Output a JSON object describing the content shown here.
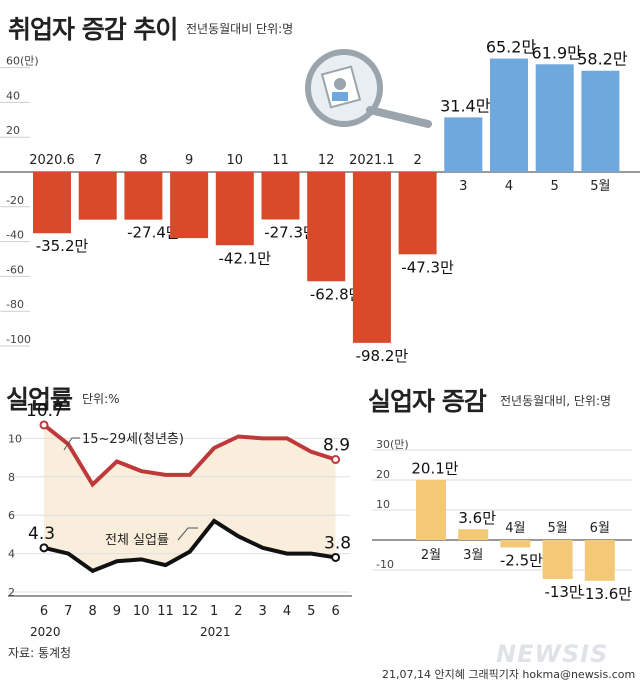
{
  "colors": {
    "neg": "#d94a2b",
    "pos": "#6fa8dc",
    "bar2": "#f3c978",
    "area": "#f9eedc",
    "red": "#c0393a",
    "line": "#111111"
  },
  "top": {
    "title": "취업자 증감 추이",
    "note": "전년동월대비 단위:명"
  },
  "left": {
    "title": "실업률",
    "note": "단위:%"
  },
  "right": {
    "title": "실업자 증감",
    "note": "전년동월대비, 단위:명"
  },
  "source": "자료: 통계청",
  "credit": "21,07,14 안지혜 그래픽기자 hokma@newsis.com",
  "watermark": "NEWSIS",
  "chart_data": [
    {
      "type": "bar",
      "title": "취업자 증감 추이",
      "unit": "만",
      "categories": [
        "2020.6",
        "7",
        "8",
        "9",
        "10",
        "11",
        "12",
        "2021.1",
        "2",
        "3",
        "4",
        "5",
        "5월"
      ],
      "values": [
        -35.2,
        -27.4,
        -27.4,
        -38.0,
        -42.1,
        -27.3,
        -62.8,
        -98.2,
        -47.3,
        31.4,
        65.2,
        61.9,
        58.2
      ],
      "data_labels": [
        "-35.2만",
        "",
        "-27.4만",
        "",
        "-42.1만",
        "-27.3만",
        "-62.8만",
        "-98.2만",
        "-47.3만",
        "31.4만",
        "65.2만",
        "61.9만",
        "58.2만"
      ],
      "yticks": [
        "60(만)",
        "40",
        "20",
        "-20",
        "-40",
        "-60",
        "-80",
        "-100"
      ],
      "ylim": [
        -100,
        60
      ]
    },
    {
      "type": "line",
      "title": "실업률",
      "categories": [
        "6",
        "7",
        "8",
        "9",
        "10",
        "11",
        "12",
        "1",
        "2",
        "3",
        "4",
        "5",
        "6"
      ],
      "year_labels": [
        "2020",
        "2021"
      ],
      "series": [
        {
          "name": "15~29세(청년층)",
          "values": [
            10.7,
            9.7,
            7.6,
            8.8,
            8.3,
            8.1,
            8.1,
            9.5,
            10.1,
            10.0,
            10.0,
            9.3,
            8.9
          ]
        },
        {
          "name": "전체 실업률",
          "values": [
            4.3,
            4.0,
            3.1,
            3.6,
            3.7,
            3.4,
            4.1,
            5.7,
            4.9,
            4.3,
            4.0,
            4.0,
            3.8
          ]
        }
      ],
      "labels": {
        "first_young": "10.7",
        "last_young": "8.9",
        "first_all": "4.3",
        "last_all": "3.8"
      },
      "yticks": [
        "10",
        "8",
        "6",
        "4",
        "2"
      ],
      "ylim": [
        2,
        11
      ]
    },
    {
      "type": "bar",
      "title": "실업자 증감",
      "categories": [
        "2월",
        "3월",
        "4월",
        "5월",
        "6월"
      ],
      "values": [
        20.1,
        3.6,
        -2.5,
        -13,
        -13.6
      ],
      "data_labels": [
        "20.1만",
        "3.6만",
        "-2.5만",
        "-13만",
        "-13.6만"
      ],
      "yticks": [
        "30(만)",
        "20",
        "10",
        "-10"
      ],
      "ylim": [
        -17,
        30
      ]
    }
  ]
}
